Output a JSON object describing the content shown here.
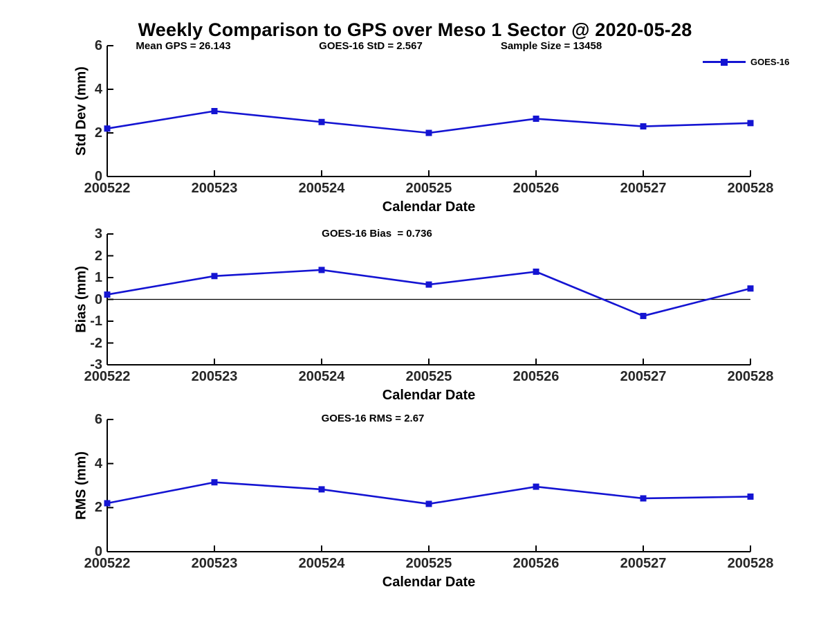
{
  "title": "Weekly Comparison to GPS over Meso 1 Sector @ 2020-05-28",
  "legend": {
    "label": "GOES-16"
  },
  "colors": {
    "line": "#1414d2",
    "axis": "#000000",
    "tick_text": "#262626",
    "zero_line": "#000000"
  },
  "chart_data": [
    {
      "type": "line",
      "ylabel": "Std Dev (mm)",
      "xlabel": "Calendar Date",
      "categories": [
        "200522",
        "200523",
        "200524",
        "200525",
        "200526",
        "200527",
        "200528"
      ],
      "series": [
        {
          "name": "GOES-16",
          "values": [
            2.2,
            3.0,
            2.5,
            2.0,
            2.65,
            2.3,
            2.45
          ]
        }
      ],
      "ylim": [
        0,
        6
      ],
      "yticks": [
        0,
        2,
        4,
        6
      ],
      "zero_line": false,
      "grid": false,
      "legend_position": "top-right",
      "annotations": [
        "Mean GPS = 26.143",
        "GOES-16 StD = 2.567",
        "Sample Size = 13458"
      ]
    },
    {
      "type": "line",
      "ylabel": "Bias (mm)",
      "xlabel": "Calendar Date",
      "categories": [
        "200522",
        "200523",
        "200524",
        "200525",
        "200526",
        "200527",
        "200528"
      ],
      "series": [
        {
          "name": "GOES-16",
          "values": [
            0.22,
            1.07,
            1.35,
            0.68,
            1.27,
            -0.76,
            0.5
          ]
        }
      ],
      "ylim": [
        -3,
        3
      ],
      "yticks": [
        3,
        2,
        1,
        0,
        -1,
        -2,
        -3
      ],
      "zero_line": true,
      "grid": false,
      "legend_position": "none",
      "annotations": [
        "GOES-16 Bias  = 0.736"
      ]
    },
    {
      "type": "line",
      "ylabel": "RMS (mm)",
      "xlabel": "Calendar Date",
      "categories": [
        "200522",
        "200523",
        "200524",
        "200525",
        "200526",
        "200527",
        "200528"
      ],
      "series": [
        {
          "name": "GOES-16",
          "values": [
            2.2,
            3.15,
            2.83,
            2.17,
            2.95,
            2.42,
            2.5
          ]
        }
      ],
      "ylim": [
        0,
        6
      ],
      "yticks": [
        0,
        2,
        4,
        6
      ],
      "zero_line": false,
      "grid": false,
      "legend_position": "none",
      "annotations": [
        "GOES-16 RMS = 2.67"
      ]
    }
  ]
}
